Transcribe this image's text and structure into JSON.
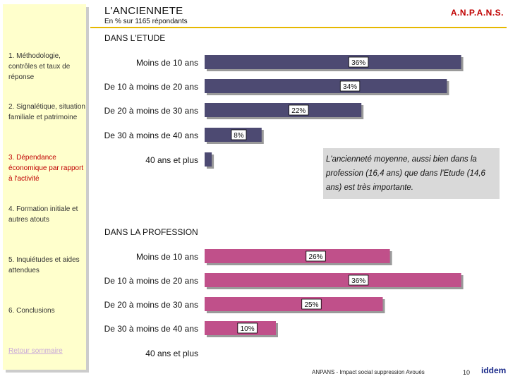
{
  "header": {
    "title": "L'ANCIENNETE",
    "subtitle": "En % sur 1165 répondants",
    "brand": "A.N.P.A.N.S."
  },
  "sidebar": {
    "items": [
      {
        "label": "1. Méthodologie, contrôles et taux de réponse"
      },
      {
        "label": "2. Signalétique, situation familiale et patrimoine"
      },
      {
        "label": "3. Dépendance économique par rapport à l'activité"
      },
      {
        "label": "4. Formation initiale et autres atouts"
      },
      {
        "label": "5. Inquiétudes et aides attendues"
      },
      {
        "label": "6. Conclusions"
      }
    ],
    "back_link": "Retour sommaire"
  },
  "note": "L'ancienneté moyenne, aussi bien dans la profession (16,4 ans) que dans l'Etude (14,6 ans) est très importante.",
  "footer": {
    "text": "ANPANS - Impact social suppression Avoués",
    "page": "10",
    "logo": "iddem"
  },
  "colors": {
    "etude_bar": "#4d4a72",
    "profession_bar": "#c0508a",
    "accent": "#c00000"
  },
  "chart_data": [
    {
      "type": "bar",
      "orientation": "horizontal",
      "title": "DANS L'ETUDE",
      "categories": [
        "Moins de 10 ans",
        "De 10 à moins de 20 ans",
        "De 20 à moins de 30 ans",
        "De 30 à moins de 40 ans",
        "40 ans et plus"
      ],
      "values": [
        36,
        34,
        22,
        8,
        1
      ],
      "value_labels": [
        "36%",
        "34%",
        "22%",
        "8%",
        ""
      ],
      "unit": "%"
    },
    {
      "type": "bar",
      "orientation": "horizontal",
      "title": "DANS LA PROFESSION",
      "categories": [
        "Moins de 10 ans",
        "De 10 à moins de 20 ans",
        "De 20 à moins de 30 ans",
        "De 30 à moins de 40 ans",
        "40 ans et plus"
      ],
      "values": [
        26,
        36,
        25,
        10,
        0
      ],
      "value_labels": [
        "26%",
        "36%",
        "25%",
        "10%",
        ""
      ],
      "unit": "%"
    }
  ]
}
